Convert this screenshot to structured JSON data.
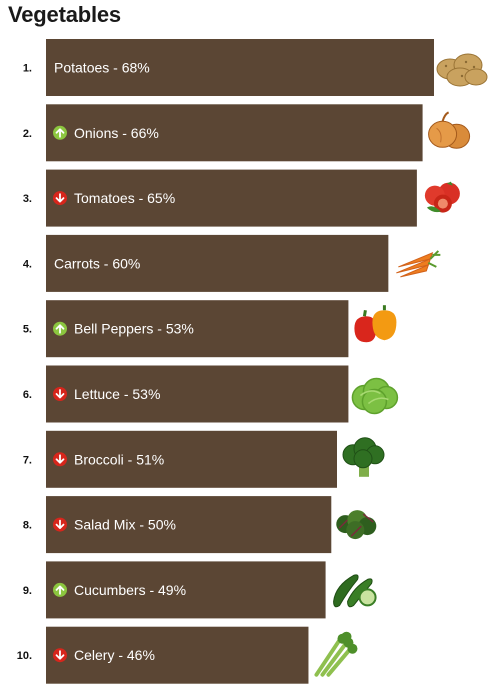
{
  "title": "Vegetables",
  "colors": {
    "bar": "#5b4634",
    "up": "#8cc63f",
    "down": "#d7261c"
  },
  "chart_data": {
    "type": "bar",
    "orientation": "horizontal",
    "title": "Vegetables",
    "items": [
      {
        "rank": "1.",
        "label": "Potatoes - 68%",
        "name": "Potatoes",
        "value": 68,
        "trend": "none",
        "icon": "potatoes-icon"
      },
      {
        "rank": "2.",
        "label": "Onions - 66%",
        "name": "Onions",
        "value": 66,
        "trend": "up",
        "icon": "onion-icon"
      },
      {
        "rank": "3.",
        "label": "Tomatoes - 65%",
        "name": "Tomatoes",
        "value": 65,
        "trend": "down",
        "icon": "tomato-icon"
      },
      {
        "rank": "4.",
        "label": "Carrots - 60%",
        "name": "Carrots",
        "value": 60,
        "trend": "none",
        "icon": "carrot-icon"
      },
      {
        "rank": "5.",
        "label": "Bell Peppers - 53%",
        "name": "Bell Peppers",
        "value": 53,
        "trend": "up",
        "icon": "bell-pepper-icon"
      },
      {
        "rank": "6.",
        "label": "Lettuce - 53%",
        "name": "Lettuce",
        "value": 53,
        "trend": "down",
        "icon": "lettuce-icon"
      },
      {
        "rank": "7.",
        "label": "Broccoli - 51%",
        "name": "Broccoli",
        "value": 51,
        "trend": "down",
        "icon": "broccoli-icon"
      },
      {
        "rank": "8.",
        "label": "Salad Mix - 50%",
        "name": "Salad Mix",
        "value": 50,
        "trend": "down",
        "icon": "salad-mix-icon"
      },
      {
        "rank": "9.",
        "label": "Cucumbers - 49%",
        "name": "Cucumbers",
        "value": 49,
        "trend": "up",
        "icon": "cucumber-icon"
      },
      {
        "rank": "10.",
        "label": "Celery - 46%",
        "name": "Celery",
        "value": 46,
        "trend": "down",
        "icon": "celery-icon"
      }
    ]
  }
}
